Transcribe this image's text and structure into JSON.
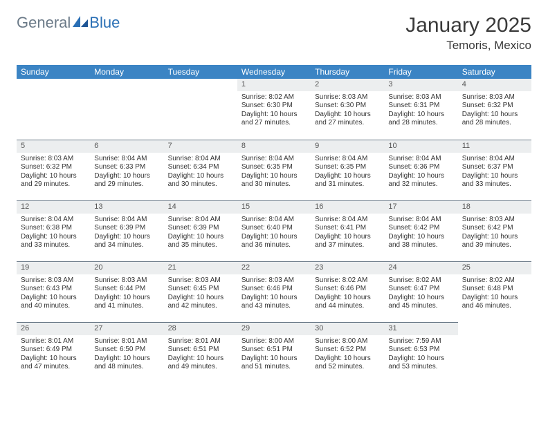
{
  "logo": {
    "general": "General",
    "blue": "Blue"
  },
  "title": {
    "month": "January 2025",
    "location": "Temoris, Mexico"
  },
  "colors": {
    "header_bg": "#3b84c4",
    "header_fg": "#ffffff",
    "daynum_bg": "#eceeef",
    "rule": "#6b7a88",
    "logo_general": "#6b7a88",
    "logo_blue": "#2a6fb5"
  },
  "daysOfWeek": [
    "Sunday",
    "Monday",
    "Tuesday",
    "Wednesday",
    "Thursday",
    "Friday",
    "Saturday"
  ],
  "weeks": [
    [
      null,
      null,
      null,
      {
        "n": "1",
        "sunrise": "8:02 AM",
        "sunset": "6:30 PM",
        "daylight": "10 hours and 27 minutes."
      },
      {
        "n": "2",
        "sunrise": "8:03 AM",
        "sunset": "6:30 PM",
        "daylight": "10 hours and 27 minutes."
      },
      {
        "n": "3",
        "sunrise": "8:03 AM",
        "sunset": "6:31 PM",
        "daylight": "10 hours and 28 minutes."
      },
      {
        "n": "4",
        "sunrise": "8:03 AM",
        "sunset": "6:32 PM",
        "daylight": "10 hours and 28 minutes."
      }
    ],
    [
      {
        "n": "5",
        "sunrise": "8:03 AM",
        "sunset": "6:32 PM",
        "daylight": "10 hours and 29 minutes."
      },
      {
        "n": "6",
        "sunrise": "8:04 AM",
        "sunset": "6:33 PM",
        "daylight": "10 hours and 29 minutes."
      },
      {
        "n": "7",
        "sunrise": "8:04 AM",
        "sunset": "6:34 PM",
        "daylight": "10 hours and 30 minutes."
      },
      {
        "n": "8",
        "sunrise": "8:04 AM",
        "sunset": "6:35 PM",
        "daylight": "10 hours and 30 minutes."
      },
      {
        "n": "9",
        "sunrise": "8:04 AM",
        "sunset": "6:35 PM",
        "daylight": "10 hours and 31 minutes."
      },
      {
        "n": "10",
        "sunrise": "8:04 AM",
        "sunset": "6:36 PM",
        "daylight": "10 hours and 32 minutes."
      },
      {
        "n": "11",
        "sunrise": "8:04 AM",
        "sunset": "6:37 PM",
        "daylight": "10 hours and 33 minutes."
      }
    ],
    [
      {
        "n": "12",
        "sunrise": "8:04 AM",
        "sunset": "6:38 PM",
        "daylight": "10 hours and 33 minutes."
      },
      {
        "n": "13",
        "sunrise": "8:04 AM",
        "sunset": "6:39 PM",
        "daylight": "10 hours and 34 minutes."
      },
      {
        "n": "14",
        "sunrise": "8:04 AM",
        "sunset": "6:39 PM",
        "daylight": "10 hours and 35 minutes."
      },
      {
        "n": "15",
        "sunrise": "8:04 AM",
        "sunset": "6:40 PM",
        "daylight": "10 hours and 36 minutes."
      },
      {
        "n": "16",
        "sunrise": "8:04 AM",
        "sunset": "6:41 PM",
        "daylight": "10 hours and 37 minutes."
      },
      {
        "n": "17",
        "sunrise": "8:04 AM",
        "sunset": "6:42 PM",
        "daylight": "10 hours and 38 minutes."
      },
      {
        "n": "18",
        "sunrise": "8:03 AM",
        "sunset": "6:42 PM",
        "daylight": "10 hours and 39 minutes."
      }
    ],
    [
      {
        "n": "19",
        "sunrise": "8:03 AM",
        "sunset": "6:43 PM",
        "daylight": "10 hours and 40 minutes."
      },
      {
        "n": "20",
        "sunrise": "8:03 AM",
        "sunset": "6:44 PM",
        "daylight": "10 hours and 41 minutes."
      },
      {
        "n": "21",
        "sunrise": "8:03 AM",
        "sunset": "6:45 PM",
        "daylight": "10 hours and 42 minutes."
      },
      {
        "n": "22",
        "sunrise": "8:03 AM",
        "sunset": "6:46 PM",
        "daylight": "10 hours and 43 minutes."
      },
      {
        "n": "23",
        "sunrise": "8:02 AM",
        "sunset": "6:46 PM",
        "daylight": "10 hours and 44 minutes."
      },
      {
        "n": "24",
        "sunrise": "8:02 AM",
        "sunset": "6:47 PM",
        "daylight": "10 hours and 45 minutes."
      },
      {
        "n": "25",
        "sunrise": "8:02 AM",
        "sunset": "6:48 PM",
        "daylight": "10 hours and 46 minutes."
      }
    ],
    [
      {
        "n": "26",
        "sunrise": "8:01 AM",
        "sunset": "6:49 PM",
        "daylight": "10 hours and 47 minutes."
      },
      {
        "n": "27",
        "sunrise": "8:01 AM",
        "sunset": "6:50 PM",
        "daylight": "10 hours and 48 minutes."
      },
      {
        "n": "28",
        "sunrise": "8:01 AM",
        "sunset": "6:51 PM",
        "daylight": "10 hours and 49 minutes."
      },
      {
        "n": "29",
        "sunrise": "8:00 AM",
        "sunset": "6:51 PM",
        "daylight": "10 hours and 51 minutes."
      },
      {
        "n": "30",
        "sunrise": "8:00 AM",
        "sunset": "6:52 PM",
        "daylight": "10 hours and 52 minutes."
      },
      {
        "n": "31",
        "sunrise": "7:59 AM",
        "sunset": "6:53 PM",
        "daylight": "10 hours and 53 minutes."
      },
      null
    ]
  ],
  "labels": {
    "sunrise": "Sunrise:",
    "sunset": "Sunset:",
    "daylight": "Daylight:"
  }
}
